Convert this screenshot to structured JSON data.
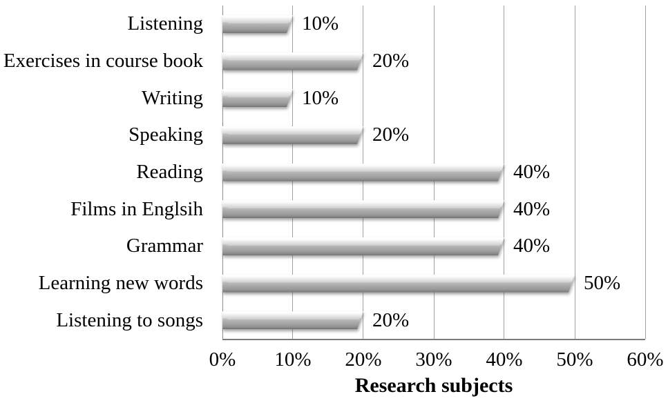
{
  "chart_data": {
    "type": "bar",
    "orientation": "horizontal",
    "categories": [
      "Listening",
      "Exercises in course book",
      "Writing",
      "Speaking",
      "Reading",
      "Films in Englsih",
      "Grammar",
      "Learning new words",
      "Listening to songs"
    ],
    "values": [
      10,
      20,
      10,
      20,
      40,
      40,
      40,
      50,
      20
    ],
    "value_labels": [
      "10%",
      "20%",
      "10%",
      "20%",
      "40%",
      "40%",
      "40%",
      "50%",
      "20%"
    ],
    "x_ticks": [
      "0%",
      "10%",
      "20%",
      "30%",
      "40%",
      "50%",
      "60%"
    ],
    "xlim": [
      0,
      60
    ],
    "xlabel": "Research subjects",
    "ylabel": "",
    "title": "",
    "legend": "none",
    "grid": "vertical gridlines every 10%",
    "colors": {
      "bar_body": "#a6a6a6",
      "bar_highlight": "#ffffff",
      "bar_shadow_edge": "#6f6f6f",
      "gridline": "#a0a0a0",
      "axis_line": "#7a7a7a",
      "text": "#000000",
      "background": "#ffffff"
    }
  }
}
